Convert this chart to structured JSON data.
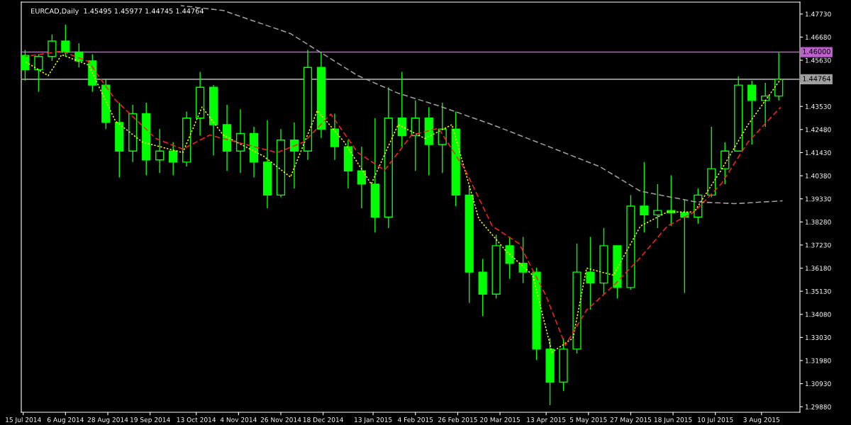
{
  "chart_data": {
    "type": "candlestick",
    "title": "EURCAD,Daily  1.45495 1.45977 1.44745 1.44764",
    "color": "#00ff00",
    "x": [
      "2014-07-16",
      "2014-07-23",
      "2014-07-30",
      "2014-08-06",
      "2014-08-13",
      "2014-08-20",
      "2014-08-27",
      "2014-09-03",
      "2014-09-10",
      "2014-09-17",
      "2014-09-24",
      "2014-10-01",
      "2014-10-08",
      "2014-10-15",
      "2014-10-22",
      "2014-10-29",
      "2014-11-05",
      "2014-11-12",
      "2014-11-19",
      "2014-11-26",
      "2014-12-03",
      "2014-12-10",
      "2014-12-17",
      "2014-12-24",
      "2014-12-31",
      "2015-01-07",
      "2015-01-14",
      "2015-01-21",
      "2015-01-28",
      "2015-02-04",
      "2015-02-11",
      "2015-02-18",
      "2015-02-25",
      "2015-03-04",
      "2015-03-11",
      "2015-03-18",
      "2015-03-25",
      "2015-04-01",
      "2015-04-08",
      "2015-04-15",
      "2015-04-22",
      "2015-04-29",
      "2015-05-06",
      "2015-05-13",
      "2015-05-20",
      "2015-05-27",
      "2015-06-03",
      "2015-06-10",
      "2015-06-17",
      "2015-06-24",
      "2015-07-01",
      "2015-07-08",
      "2015-07-15",
      "2015-07-22",
      "2015-07-29",
      "2015-08-05",
      "2015-08-12"
    ],
    "ohlc": [
      [
        1.4585,
        1.461,
        1.447,
        1.452
      ],
      [
        1.452,
        1.459,
        1.442,
        1.458
      ],
      [
        1.458,
        1.468,
        1.456,
        1.465
      ],
      [
        1.465,
        1.4725,
        1.458,
        1.46
      ],
      [
        1.46,
        1.464,
        1.453,
        1.456
      ],
      [
        1.456,
        1.459,
        1.442,
        1.445
      ],
      [
        1.445,
        1.448,
        1.425,
        1.428
      ],
      [
        1.428,
        1.437,
        1.403,
        1.415
      ],
      [
        1.415,
        1.436,
        1.41,
        1.432
      ],
      [
        1.432,
        1.437,
        1.404,
        1.411
      ],
      [
        1.411,
        1.425,
        1.405,
        1.415
      ],
      [
        1.415,
        1.419,
        1.404,
        1.41
      ],
      [
        1.41,
        1.433,
        1.408,
        1.43
      ],
      [
        1.43,
        1.451,
        1.422,
        1.444
      ],
      [
        1.444,
        1.445,
        1.413,
        1.427
      ],
      [
        1.427,
        1.436,
        1.406,
        1.415
      ],
      [
        1.415,
        1.434,
        1.405,
        1.423
      ],
      [
        1.423,
        1.426,
        1.403,
        1.41
      ],
      [
        1.41,
        1.429,
        1.389,
        1.395
      ],
      [
        1.395,
        1.425,
        1.394,
        1.42
      ],
      [
        1.42,
        1.428,
        1.398,
        1.415
      ],
      [
        1.415,
        1.461,
        1.411,
        1.453
      ],
      [
        1.453,
        1.46,
        1.421,
        1.425
      ],
      [
        1.425,
        1.432,
        1.411,
        1.417
      ],
      [
        1.417,
        1.42,
        1.398,
        1.406
      ],
      [
        1.406,
        1.417,
        1.389,
        1.4
      ],
      [
        1.4,
        1.43,
        1.378,
        1.385
      ],
      [
        1.385,
        1.444,
        1.38,
        1.43
      ],
      [
        1.43,
        1.451,
        1.417,
        1.422
      ],
      [
        1.422,
        1.438,
        1.406,
        1.43
      ],
      [
        1.43,
        1.435,
        1.404,
        1.418
      ],
      [
        1.418,
        1.437,
        1.405,
        1.425
      ],
      [
        1.425,
        1.433,
        1.39,
        1.395
      ],
      [
        1.395,
        1.399,
        1.346,
        1.36
      ],
      [
        1.36,
        1.366,
        1.34,
        1.35
      ],
      [
        1.35,
        1.377,
        1.348,
        1.372
      ],
      [
        1.372,
        1.376,
        1.357,
        1.364
      ],
      [
        1.364,
        1.376,
        1.355,
        1.36
      ],
      [
        1.36,
        1.362,
        1.32,
        1.325
      ],
      [
        1.325,
        1.33,
        1.2995,
        1.31
      ],
      [
        1.31,
        1.33,
        1.306,
        1.325
      ],
      [
        1.325,
        1.373,
        1.323,
        1.36
      ],
      [
        1.36,
        1.376,
        1.343,
        1.355
      ],
      [
        1.355,
        1.38,
        1.35,
        1.372
      ],
      [
        1.372,
        1.372,
        1.348,
        1.353
      ],
      [
        1.353,
        1.395,
        1.352,
        1.39
      ],
      [
        1.39,
        1.41,
        1.378,
        1.386
      ],
      [
        1.386,
        1.4,
        1.38,
        1.388
      ],
      [
        1.388,
        1.404,
        1.381,
        1.387
      ],
      [
        1.387,
        1.393,
        1.3505,
        1.385
      ],
      [
        1.385,
        1.398,
        1.382,
        1.395
      ],
      [
        1.395,
        1.426,
        1.394,
        1.407
      ],
      [
        1.407,
        1.419,
        1.4,
        1.415
      ],
      [
        1.415,
        1.449,
        1.415,
        1.445
      ],
      [
        1.445,
        1.447,
        1.418,
        1.438
      ],
      [
        1.438,
        1.446,
        1.426,
        1.44
      ],
      [
        1.44,
        1.45977,
        1.438,
        1.44764
      ]
    ],
    "series": [
      {
        "type": "line",
        "color": "#ffff00",
        "line_style": "dotted",
        "x": [
          "2014-07-16",
          "2014-07-28",
          "2014-08-04",
          "2014-08-18",
          "2014-09-01",
          "2014-09-15",
          "2014-10-06",
          "2014-10-16",
          "2014-10-27",
          "2014-11-17",
          "2014-12-01",
          "2014-12-15",
          "2014-12-29",
          "2015-01-12",
          "2015-01-26",
          "2015-02-09",
          "2015-02-23",
          "2015-03-09",
          "2015-03-23",
          "2015-04-06",
          "2015-04-16",
          "2015-04-27",
          "2015-05-04",
          "2015-05-18",
          "2015-06-01",
          "2015-06-15",
          "2015-06-29",
          "2015-07-13",
          "2015-07-27",
          "2015-08-13"
        ],
        "values": [
          1.4557,
          1.4493,
          1.4588,
          1.4541,
          1.4286,
          1.4191,
          1.4143,
          1.435,
          1.4223,
          1.4127,
          1.4032,
          1.4334,
          1.4191,
          1.4,
          1.427,
          1.4207,
          1.427,
          1.3841,
          1.3697,
          1.3586,
          1.3236,
          1.33,
          1.3618,
          1.3586,
          1.3809,
          1.3873,
          1.3873,
          1.4063,
          1.427,
          1.4477
        ]
      },
      {
        "type": "line",
        "color": "#ff2020",
        "line_style": "dashed",
        "x": [
          "2014-07-16",
          "2014-08-04",
          "2014-08-18",
          "2014-09-01",
          "2014-09-22",
          "2014-10-06",
          "2014-10-20",
          "2014-11-10",
          "2014-11-24",
          "2014-12-08",
          "2014-12-22",
          "2015-01-05",
          "2015-01-19",
          "2015-02-02",
          "2015-02-16",
          "2015-03-02",
          "2015-03-16",
          "2015-03-30",
          "2015-04-13",
          "2015-04-23",
          "2015-05-04",
          "2015-05-18",
          "2015-06-01",
          "2015-06-15",
          "2015-06-29",
          "2015-07-13",
          "2015-07-27",
          "2015-08-13"
        ],
        "values": [
          1.458,
          1.4604,
          1.4557,
          1.4382,
          1.4207,
          1.4159,
          1.4223,
          1.4175,
          1.4143,
          1.4191,
          1.4318,
          1.4143,
          1.4063,
          1.4223,
          1.4254,
          1.4063,
          1.3809,
          1.3729,
          1.3491,
          1.3268,
          1.3427,
          1.3538,
          1.3666,
          1.3809,
          1.3873,
          1.4,
          1.4191,
          1.435
        ]
      },
      {
        "type": "line",
        "color": "#a0a0a0",
        "line_style": "dashed",
        "x": [
          "2014-10-05",
          "2014-10-27",
          "2014-12-01",
          "2015-01-05",
          "2015-01-26",
          "2015-02-16",
          "2015-03-16",
          "2015-04-13",
          "2015-05-11",
          "2015-06-01",
          "2015-06-29",
          "2015-07-20",
          "2015-08-14"
        ],
        "values": [
          1.4811,
          1.4789,
          1.4684,
          1.4493,
          1.4413,
          1.4356,
          1.427,
          1.4175,
          1.4079,
          1.3968,
          1.392,
          1.3911,
          1.3924
        ]
      }
    ],
    "ref_lines": [
      {
        "axis": "y",
        "value": 1.46,
        "label": "1.46000",
        "color": "#c060d0"
      },
      {
        "axis": "y",
        "value": 1.44764,
        "label": "1.44764",
        "color": "#a0a0a0"
      }
    ],
    "ylim": [
      1.2963,
      1.4827
    ],
    "yticks": [
      {
        "value": 1.2988,
        "label": "1.29880"
      },
      {
        "value": 1.3093,
        "label": "1.30930"
      },
      {
        "value": 1.3198,
        "label": "1.31980"
      },
      {
        "value": 1.3303,
        "label": "1.33030"
      },
      {
        "value": 1.3408,
        "label": "1.34080"
      },
      {
        "value": 1.3513,
        "label": "1.35130"
      },
      {
        "value": 1.3618,
        "label": "1.36180"
      },
      {
        "value": 1.3723,
        "label": "1.37230"
      },
      {
        "value": 1.3828,
        "label": "1.38280"
      },
      {
        "value": 1.3933,
        "label": "1.39330"
      },
      {
        "value": 1.4038,
        "label": "1.40380"
      },
      {
        "value": 1.4143,
        "label": "1.41430"
      },
      {
        "value": 1.4248,
        "label": "1.42480"
      },
      {
        "value": 1.4353,
        "label": "1.43530"
      },
      {
        "value": 1.4458,
        "label": null
      },
      {
        "value": 1.4563,
        "label": "1.45630"
      },
      {
        "value": 1.4668,
        "label": "1.46680"
      },
      {
        "value": 1.4773,
        "label": "1.47730"
      }
    ],
    "xlim": [
      "2014-07-14",
      "2015-08-23"
    ],
    "xticks": [
      {
        "value": "2014-07-15",
        "label": "15 Jul 2014"
      },
      {
        "value": "2014-08-06",
        "label": "6 Aug 2014"
      },
      {
        "value": "2014-08-28",
        "label": "28 Aug 2014"
      },
      {
        "value": "2014-09-19",
        "label": "19 Sep 2014"
      },
      {
        "value": "2014-10-13",
        "label": "13 Oct 2014"
      },
      {
        "value": "2014-11-04",
        "label": "4 Nov 2014"
      },
      {
        "value": "2014-11-26",
        "label": "26 Nov 2014"
      },
      {
        "value": "2014-12-18",
        "label": "18 Dec 2014"
      },
      {
        "value": "2015-01-13",
        "label": "13 Jan 2015"
      },
      {
        "value": "2015-02-04",
        "label": "4 Feb 2015"
      },
      {
        "value": "2015-02-26",
        "label": "26 Feb 2015"
      },
      {
        "value": "2015-03-20",
        "label": "20 Mar 2015"
      },
      {
        "value": "2015-04-13",
        "label": "13 Apr 2015"
      },
      {
        "value": "2015-05-05",
        "label": "5 May 2015"
      },
      {
        "value": "2015-05-27",
        "label": "27 May 2015"
      },
      {
        "value": "2015-06-18",
        "label": "18 Jun 2015"
      },
      {
        "value": "2015-07-10",
        "label": "10 Jul 2015"
      },
      {
        "value": "2015-08-03",
        "label": "3 Aug 2015"
      }
    ],
    "grid": false,
    "legend": false
  }
}
